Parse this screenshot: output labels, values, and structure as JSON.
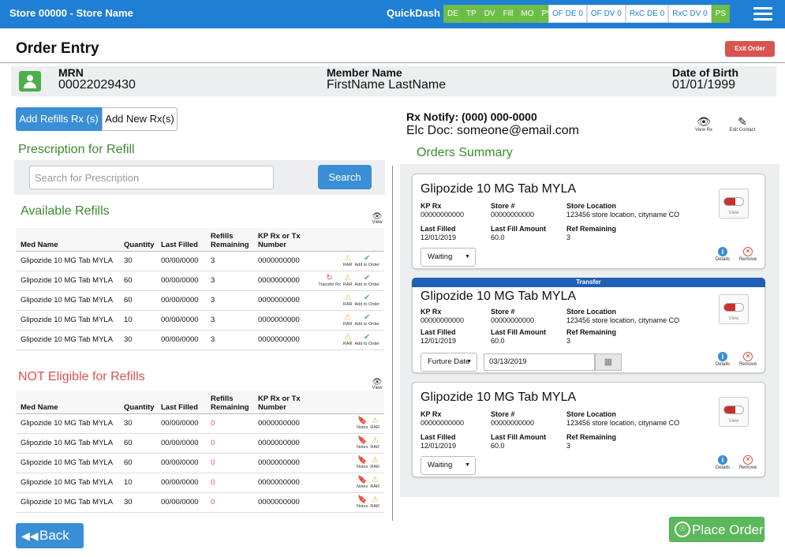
{
  "topbar": {
    "store": "Store 00000 - Store Name",
    "quickdash": "QuickDash",
    "quick_green": [
      "DE",
      "TP",
      "DV",
      "Fill",
      "MO",
      "PV"
    ],
    "quick_counts": [
      "OF DE 0",
      "OF DV 0",
      "RxC DE 0",
      "RxC DV 0"
    ],
    "quick_ps": "PS"
  },
  "page": {
    "title": "Order Entry",
    "exit_label": "Exit Order"
  },
  "member": {
    "mrn_label": "MRN",
    "mrn": "00022029430",
    "name_label": "Member Name",
    "name": "FirstName LastName",
    "dob_label": "Date of Birth",
    "dob": "01/01/1999"
  },
  "mode_tabs": {
    "refill": "Add Refills Rx (s)",
    "new": "Add New Rx(s)"
  },
  "prescription": {
    "heading": "Prescription for Refill",
    "search_placeholder": "Search for Prescription",
    "search_label": "Search"
  },
  "available": {
    "heading": "Available Refills",
    "view": "View",
    "columns": [
      "Med Name",
      "Quantity",
      "Last Filled",
      "Refills Remaining",
      "KP Rx or Tx Number"
    ],
    "rows": [
      {
        "med": "Glipozide 10 MG Tab MYLA",
        "qty": "30",
        "last": "00/00/0000",
        "refills": "3",
        "rx": "0000000000",
        "transfer": false
      },
      {
        "med": "Glipozide 10 MG Tab MYLA",
        "qty": "60",
        "last": "00/00/0000",
        "refills": "3",
        "rx": "0000000000",
        "transfer": true
      },
      {
        "med": "Glipozide 10 MG Tab MYLA",
        "qty": "60",
        "last": "00/00/0000",
        "refills": "3",
        "rx": "0000000000",
        "transfer": false
      },
      {
        "med": "Glipozide 10 MG Tab MYLA",
        "qty": "10",
        "last": "00/00/0000",
        "refills": "3",
        "rx": "0000000000",
        "transfer": false
      },
      {
        "med": "Glipozide 10 MG Tab MYLA",
        "qty": "30",
        "last": "00/00/0000",
        "refills": "3",
        "rx": "0000000000",
        "transfer": false
      }
    ],
    "act_rar": "RAR",
    "act_add": "Add to Order",
    "act_transfer": "Transfer Rx"
  },
  "not_eligible": {
    "heading": "NOT Eligible for Refills",
    "view": "View",
    "columns": [
      "Med Name",
      "Quantity",
      "Last Filled",
      "Refills Remaining",
      "KP Rx or Tx Number"
    ],
    "rows": [
      {
        "med": "Glipozide 10 MG Tab MYLA",
        "qty": "30",
        "last": "00/00/0000",
        "refills": "0",
        "rx": "0000000000"
      },
      {
        "med": "Glipozide 10 MG Tab MYLA",
        "qty": "60",
        "last": "00/00/0000",
        "refills": "0",
        "rx": "0000000000"
      },
      {
        "med": "Glipozide 10 MG Tab MYLA",
        "qty": "60",
        "last": "00/00/0000",
        "refills": "0",
        "rx": "0000000000"
      },
      {
        "med": "Glipozide 10 MG Tab MYLA",
        "qty": "10",
        "last": "00/00/0000",
        "refills": "0",
        "rx": "0000000000"
      },
      {
        "med": "Glipozide 10 MG Tab MYLA",
        "qty": "30",
        "last": "00/00/0000",
        "refills": "0",
        "rx": "0000000000"
      }
    ],
    "act_notes": "Notes",
    "act_rar": "RAR"
  },
  "back_label": "Back",
  "contact": {
    "rx_notify": "Rx Notify: (000) 000-0000",
    "elc_doc": "Elc Doc: someone@email.com",
    "view_rx": "View Rx",
    "edit_contact": "Edit Contact"
  },
  "orders": {
    "heading": "Orders Summary",
    "labels": {
      "kp_rx": "KP Rx",
      "store": "Store #",
      "location": "Store Location",
      "last_filled": "Last Filled",
      "last_amount": "Last Fill Amount",
      "ref_remaining": "Ref Remaining",
      "view": "View",
      "details": "Details",
      "remove": "Remove"
    },
    "cards": [
      {
        "title": "Glipozide 10 MG Tab MYLA",
        "kp_rx": "00000000000",
        "store": "00000000000",
        "location": "123456 store location, cityname CO",
        "last_filled": "12/01/2019",
        "last_amount": "60.0",
        "ref_remaining": "3",
        "status": "Waiting",
        "transfer": "",
        "date": ""
      },
      {
        "title": "Glipozide 10 MG Tab MYLA",
        "kp_rx": "00000000000",
        "store": "00000000000",
        "location": "123456 store location, cityname CO",
        "last_filled": "12/01/2019",
        "last_amount": "60.0",
        "ref_remaining": "3",
        "status": "Furture Date",
        "transfer": "Transfer",
        "date": "03/13/2019"
      },
      {
        "title": "Glipozide 10 MG Tab MYLA",
        "kp_rx": "00000000000",
        "store": "00000000000",
        "location": "123456 store location, cityname CO",
        "last_filled": "12/01/2019",
        "last_amount": "60.0",
        "ref_remaining": "3",
        "status": "Waiting",
        "transfer": "",
        "date": ""
      }
    ]
  },
  "place_order_label": "Place Order",
  "colors": {
    "primary": "#1f7fd4",
    "success": "#5cb85c",
    "danger": "#d9534f",
    "heading_green": "#3b8a2f"
  }
}
